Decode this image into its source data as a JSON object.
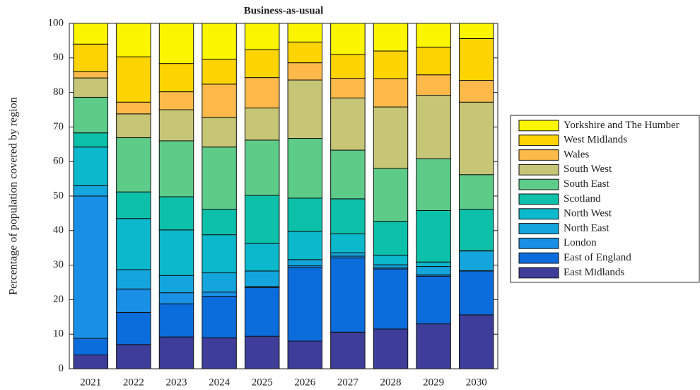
{
  "chart_data": {
    "type": "bar",
    "stacked": true,
    "title": "Business-as-usual",
    "ylabel": "Percentage of population covered by region",
    "categories": [
      "2021",
      "2022",
      "2023",
      "2024",
      "2025",
      "2026",
      "2027",
      "2028",
      "2029",
      "2030"
    ],
    "series": [
      {
        "name": "East Midlands",
        "color": "#3e3d99",
        "values": [
          4,
          7,
          9.2,
          9,
          9.4,
          8,
          10.6,
          11.5,
          13,
          15.6
        ]
      },
      {
        "name": "East of England",
        "color": "#0b6cdc",
        "values": [
          4.8,
          9.3,
          9.6,
          12,
          14.1,
          21.3,
          21.5,
          17.4,
          13.8,
          12.7
        ]
      },
      {
        "name": "London",
        "color": "#1990e5",
        "values": [
          41.2,
          6.8,
          3.2,
          1.2,
          0.3,
          0.5,
          0.5,
          0.3,
          0.4,
          0.1
        ]
      },
      {
        "name": "North East",
        "color": "#13a5dc",
        "values": [
          3,
          5.6,
          5,
          5.6,
          4.5,
          1.8,
          1,
          0.9,
          2.4,
          5.7
        ]
      },
      {
        "name": "North West",
        "color": "#0bb8cc",
        "values": [
          11.2,
          14.8,
          13.2,
          11,
          8,
          8.2,
          5.5,
          2.8,
          1.3,
          0.1
        ]
      },
      {
        "name": "Scotland",
        "color": "#0dc0a9",
        "values": [
          4.1,
          7.7,
          9.6,
          7.4,
          13.9,
          9.6,
          10.1,
          9.8,
          14.9,
          12
        ]
      },
      {
        "name": "South East",
        "color": "#5ecc89",
        "values": [
          10.3,
          15.7,
          16.2,
          18,
          16,
          17.3,
          14.1,
          15.3,
          15,
          10
        ]
      },
      {
        "name": "South West",
        "color": "#c6c676",
        "values": [
          5.6,
          6.9,
          9,
          8.6,
          9.3,
          16.9,
          15.1,
          17.8,
          18.4,
          21
        ]
      },
      {
        "name": "Wales",
        "color": "#fdba4a",
        "values": [
          1.8,
          3.4,
          5.2,
          9.6,
          8.8,
          5,
          5.7,
          8.2,
          5.9,
          6.3
        ]
      },
      {
        "name": "West Midlands",
        "color": "#fdd300",
        "values": [
          8,
          13.1,
          8.2,
          7.2,
          8.1,
          6,
          6.9,
          8,
          8,
          12.1
        ]
      },
      {
        "name": "Yorkshire and The Humber",
        "color": "#fbf500",
        "values": [
          6,
          9.7,
          11.6,
          10.4,
          7.6,
          5.4,
          9,
          8,
          6.9,
          4.4
        ]
      }
    ],
    "ylim": [
      0,
      100
    ],
    "yticks": [
      0,
      10,
      20,
      30,
      40,
      50,
      60,
      70,
      80,
      90,
      100
    ],
    "legend": "right"
  }
}
